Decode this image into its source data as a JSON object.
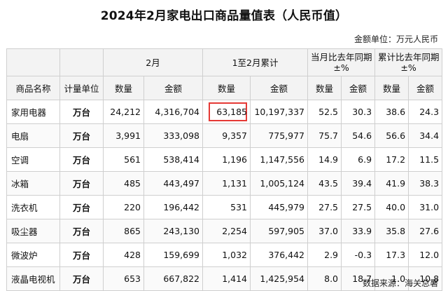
{
  "title": "2024年2月家电出口商品量值表（人民币值）",
  "unit": "金额单位：万元人民币",
  "headers": {
    "group_feb": "2月",
    "group_cum": "1至2月累计",
    "group_yoy_month_l1": "当月比去年同期",
    "group_yoy_month_l2": "±%",
    "group_yoy_cum_l1": "累计比去年同期",
    "group_yoy_cum_l2": "±%",
    "product": "商品名称",
    "measure": "计量单位",
    "qty": "数量",
    "amount": "金额"
  },
  "rows": [
    {
      "name": "家用电器",
      "unit": "万台",
      "feb_qty": "24,212",
      "feb_amt": "4,316,704",
      "cum_qty": "63,185",
      "cum_amt": "10,197,337",
      "m_qty": "52.5",
      "m_amt": "30.3",
      "c_qty": "38.6",
      "c_amt": "24.3"
    },
    {
      "name": "电扇",
      "unit": "万台",
      "feb_qty": "3,991",
      "feb_amt": "333,098",
      "cum_qty": "9,357",
      "cum_amt": "775,977",
      "m_qty": "75.7",
      "m_amt": "54.6",
      "c_qty": "56.6",
      "c_amt": "34.4"
    },
    {
      "name": "空调",
      "unit": "万台",
      "feb_qty": "561",
      "feb_amt": "538,414",
      "cum_qty": "1,196",
      "cum_amt": "1,147,556",
      "m_qty": "14.9",
      "m_amt": "6.9",
      "c_qty": "17.2",
      "c_amt": "11.5"
    },
    {
      "name": "冰箱",
      "unit": "万台",
      "feb_qty": "485",
      "feb_amt": "443,497",
      "cum_qty": "1,131",
      "cum_amt": "1,005,124",
      "m_qty": "43.5",
      "m_amt": "39.4",
      "c_qty": "41.9",
      "c_amt": "38.3"
    },
    {
      "name": "洗衣机",
      "unit": "万台",
      "feb_qty": "220",
      "feb_amt": "196,442",
      "cum_qty": "531",
      "cum_amt": "445,979",
      "m_qty": "27.5",
      "m_amt": "27.5",
      "c_qty": "40.0",
      "c_amt": "31.0"
    },
    {
      "name": "吸尘器",
      "unit": "万台",
      "feb_qty": "865",
      "feb_amt": "243,130",
      "cum_qty": "2,254",
      "cum_amt": "597,905",
      "m_qty": "37.0",
      "m_amt": "33.9",
      "c_qty": "35.8",
      "c_amt": "27.6"
    },
    {
      "name": "微波炉",
      "unit": "万台",
      "feb_qty": "428",
      "feb_amt": "159,699",
      "cum_qty": "1,032",
      "cum_amt": "376,442",
      "m_qty": "2.9",
      "m_amt": "-0.3",
      "c_qty": "17.3",
      "c_amt": "12.0"
    },
    {
      "name": "液晶电视机",
      "unit": "万台",
      "feb_qty": "653",
      "feb_amt": "667,822",
      "cum_qty": "1,414",
      "cum_amt": "1,425,954",
      "m_qty": "8.0",
      "m_amt": "18.7",
      "c_qty": "1.0",
      "c_amt": "10.8"
    }
  ],
  "source": "数据来源：海关总署"
}
